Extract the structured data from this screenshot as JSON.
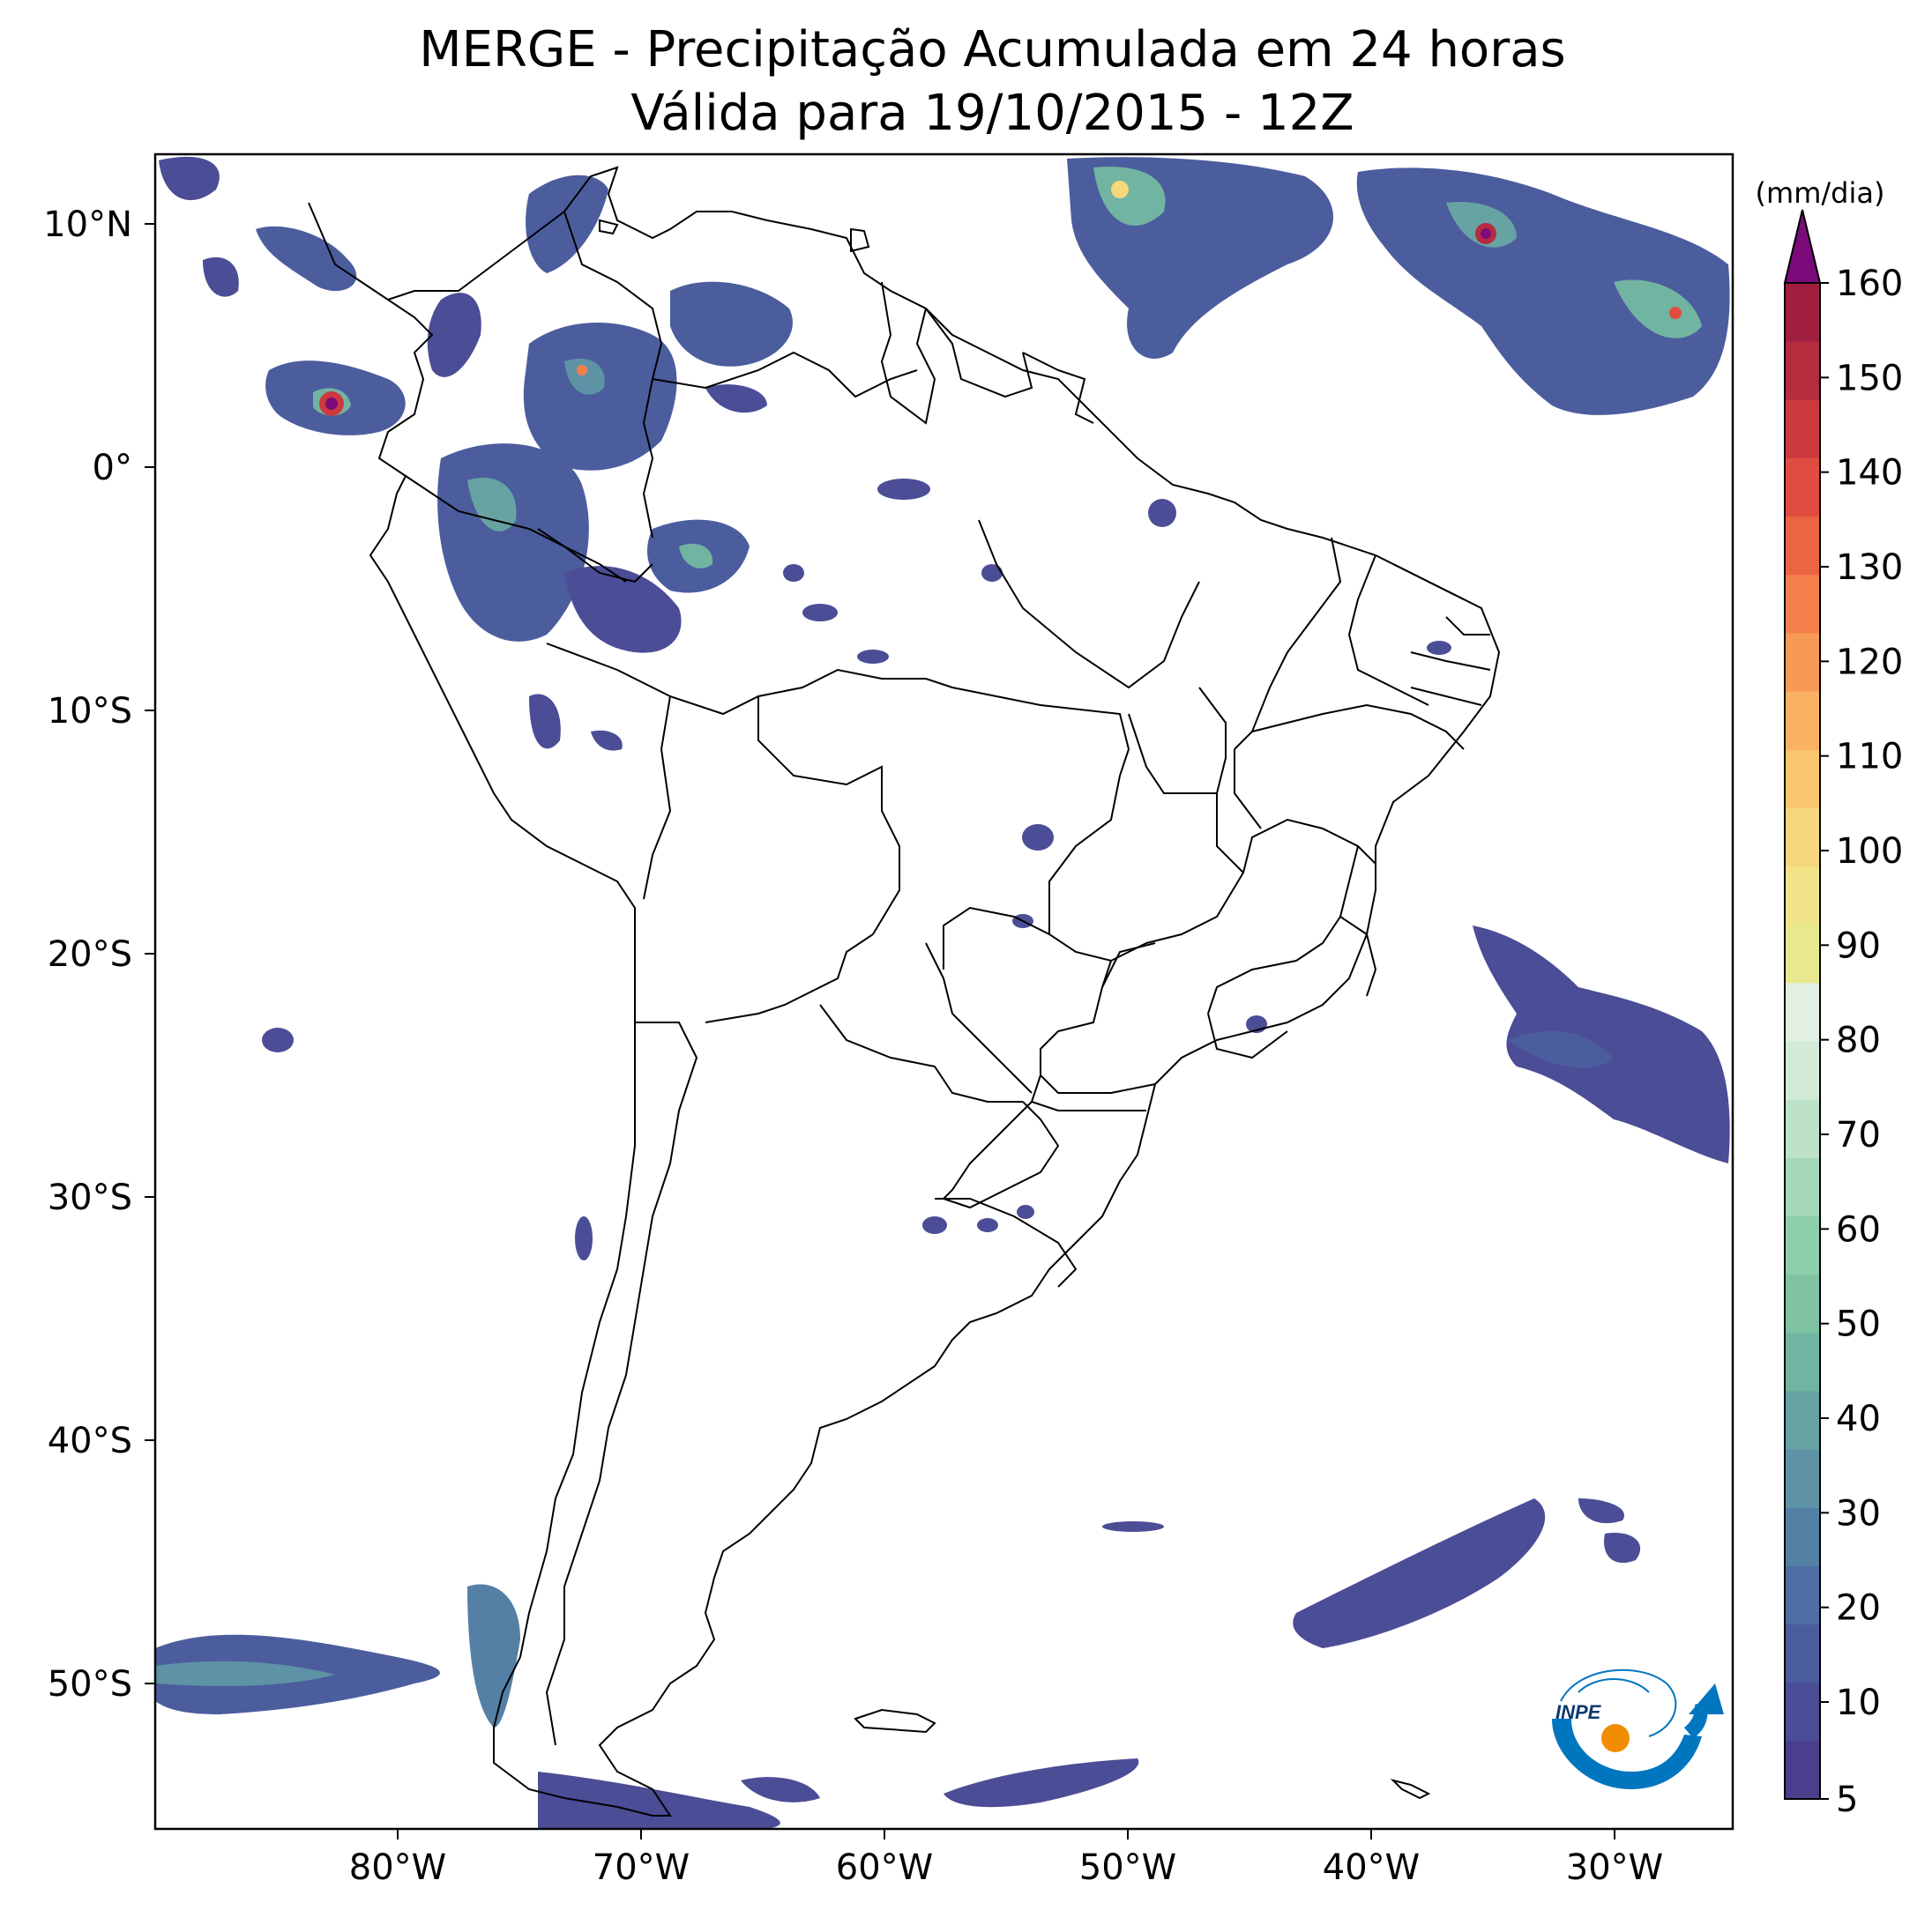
{
  "title": {
    "line1": "MERGE - Precipitação Acumulada em 24 horas",
    "line2": "Válida para 19/10/2015 - 12Z"
  },
  "axes": {
    "lat_labels": [
      "10°N",
      "0°",
      "10°S",
      "20°S",
      "30°S",
      "40°S",
      "50°S"
    ],
    "lon_labels": [
      "80°W",
      "70°W",
      "60°W",
      "50°W",
      "40°W",
      "30°W"
    ]
  },
  "colorbar": {
    "unit": "(mm/dia)",
    "tick_labels": [
      "5",
      "10",
      "20",
      "30",
      "40",
      "50",
      "60",
      "70",
      "80",
      "90",
      "100",
      "110",
      "120",
      "130",
      "140",
      "150",
      "160"
    ],
    "extend": "max",
    "colors": [
      "#4a3f8c",
      "#4b4d96",
      "#4c5d9e",
      "#4f6ea5",
      "#5580a6",
      "#5e92a5",
      "#67a3a3",
      "#72b4a2",
      "#7fc3a3",
      "#8fceab",
      "#a5d8b8",
      "#bde2c8",
      "#d2ebd9",
      "#e2f0e4",
      "#e8e98e",
      "#f1e388",
      "#f6d77b",
      "#f8c66d",
      "#f9b262",
      "#f79a56",
      "#f3804b",
      "#ec6543",
      "#e04d40",
      "#cc3a3f",
      "#b52c3f",
      "#a01f40"
    ],
    "over_color": "#7b0a7a"
  },
  "logo": {
    "text": "INPE"
  }
}
